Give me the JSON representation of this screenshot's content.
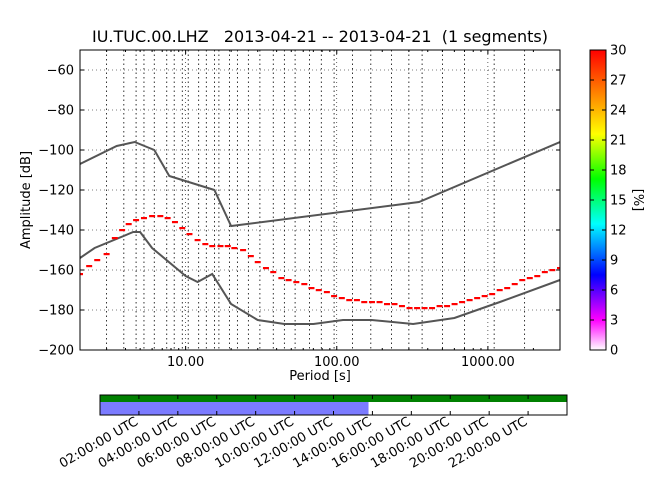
{
  "chart_data": [
    {
      "type": "line",
      "title": "IU.TUC.00.LHZ   2013-04-21 -- 2013-04-21  (1 segments)",
      "xlabel": "Period [s]",
      "ylabel": "Amplitude [dB]",
      "xscale": "log",
      "xlim": [
        2,
        3000
      ],
      "ylim": [
        -200,
        -50
      ],
      "grid": true,
      "xticks": [
        {
          "value": 10,
          "label": "10.00"
        },
        {
          "value": 100,
          "label": "100.00"
        },
        {
          "value": 1000,
          "label": "1000.00"
        }
      ],
      "yticks": [
        {
          "value": -60,
          "label": "−60"
        },
        {
          "value": -80,
          "label": "−80"
        },
        {
          "value": -100,
          "label": "−100"
        },
        {
          "value": -120,
          "label": "−120"
        },
        {
          "value": -140,
          "label": "−140"
        },
        {
          "value": -160,
          "label": "−160"
        },
        {
          "value": -180,
          "label": "−180"
        },
        {
          "value": -200,
          "label": "−200"
        }
      ],
      "series": [
        {
          "style": "solid",
          "color": "#555555",
          "x": [
            2,
            3.5,
            4.6,
            6.2,
            7.8,
            15.5,
            20,
            350,
            3000
          ],
          "y": [
            -107,
            -98,
            -96,
            -100,
            -113,
            -120,
            -138,
            -126,
            -96
          ]
        },
        {
          "style": "solid",
          "color": "#555555",
          "x": [
            2,
            2.5,
            4.5,
            5,
            6,
            10,
            12,
            15,
            20,
            30,
            45,
            70,
            110,
            170,
            320,
            600,
            1200,
            3000
          ],
          "y": [
            -154,
            -149,
            -141,
            -141,
            -149,
            -163,
            -166,
            -162,
            -177,
            -185,
            -187,
            -187,
            -185,
            -185,
            -187,
            -184,
            -176,
            -165
          ]
        },
        {
          "style": "pdf-mode",
          "color": "#ff0000",
          "x": [
            2,
            2.3,
            2.6,
            3,
            3.4,
            3.8,
            4.2,
            4.7,
            5.3,
            6,
            6.8,
            7.6,
            8.5,
            9.5,
            10.6,
            12,
            13.5,
            15,
            17,
            19,
            21,
            24,
            27,
            30,
            34,
            38,
            43,
            48,
            54,
            61,
            68,
            76,
            86,
            96,
            108,
            121,
            136,
            152,
            171,
            192,
            215,
            241,
            270,
            303,
            340,
            381,
            427,
            479,
            537,
            602,
            675,
            757,
            849,
            952,
            1067,
            1197,
            1342,
            1505,
            1688,
            1893,
            2122,
            2380,
            2668,
            3000
          ],
          "y": [
            -162,
            -158,
            -155,
            -152,
            -144,
            -140,
            -137,
            -135,
            -134,
            -133,
            -133,
            -134,
            -136,
            -139,
            -142,
            -145,
            -147,
            -148,
            -148,
            -148,
            -149,
            -150,
            -153,
            -156,
            -159,
            -161,
            -164,
            -165,
            -166,
            -167,
            -169,
            -170,
            -171,
            -173,
            -174,
            -175,
            -175,
            -176,
            -176,
            -176,
            -177,
            -177,
            -178,
            -179,
            -179,
            -179,
            -179,
            -178,
            -178,
            -177,
            -176,
            -175,
            -174,
            -173,
            -172,
            -170,
            -169,
            -167,
            -165,
            -164,
            -163,
            -161,
            -160,
            -159
          ]
        }
      ],
      "vertical_markers": [
        3,
        3.9,
        4.7,
        5.3,
        6.2,
        7.5,
        8.4,
        9.5,
        10.4,
        12.2,
        13.7,
        15.5,
        16.6,
        19.5,
        22,
        26,
        31,
        38,
        45,
        53,
        66,
        79,
        96,
        127,
        168,
        230,
        300,
        367,
        500,
        700,
        1100,
        1750
      ]
    },
    {
      "type": "colorbar",
      "label": "[%]",
      "range": [
        0,
        30
      ],
      "ticks": [
        "0",
        "3",
        "6",
        "9",
        "12",
        "15",
        "18",
        "21",
        "24",
        "27",
        "30"
      ],
      "colors": [
        "#ffffff",
        "#ff00ff",
        "#0000ff",
        "#00ffff",
        "#00ff00",
        "#ffff00",
        "#ff0000"
      ]
    },
    {
      "type": "timeline",
      "xlim": [
        0,
        24
      ],
      "tick_labels": [
        "02:00:00 UTC",
        "04:00:00 UTC",
        "06:00:00 UTC",
        "08:00:00 UTC",
        "10:00:00 UTC",
        "12:00:00 UTC",
        "14:00:00 UTC",
        "16:00:00 UTC",
        "18:00:00 UTC",
        "20:00:00 UTC",
        "22:00:00 UTC"
      ],
      "tick_hours": [
        2,
        4,
        6,
        8,
        10,
        12,
        14,
        16,
        18,
        20,
        22
      ],
      "data_coverage": {
        "start": 0,
        "end": 24,
        "color": "#008000"
      },
      "psd_coverage": {
        "start": 0,
        "end": 13.8,
        "color": "#7b7bff"
      }
    }
  ]
}
